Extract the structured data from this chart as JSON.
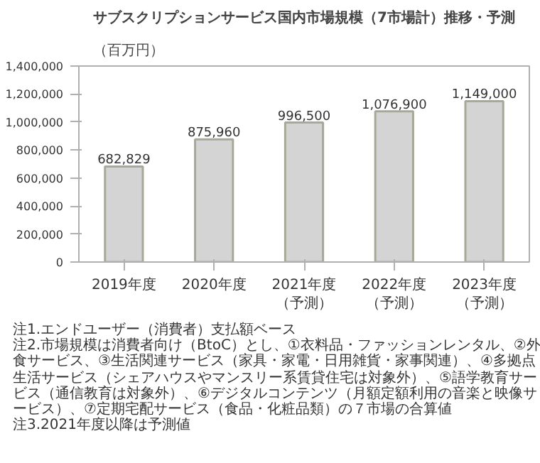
{
  "chart_data": {
    "type": "bar",
    "title": "サブスクリプションサービス国内市場規模（7市場計）推移・予測",
    "ylabel": "（百万円）",
    "categories": [
      "2019年度",
      "2020年度",
      "2021年度（予測）",
      "2022年度（予測）",
      "2023年度（予測）"
    ],
    "values": [
      682829,
      875960,
      996500,
      1076900,
      1149000
    ],
    "color": "#d4d4d4",
    "value_labels": [
      "682,829",
      "875,960",
      "996,500",
      "1,076,900",
      "1,149,000"
    ],
    "grid": false,
    "ylim": [
      0,
      1400000
    ],
    "yticks": [
      0,
      {
        "value": 200000,
        "label": "200,000"
      },
      {
        "value": 400000,
        "label": "400,000"
      },
      {
        "value": 600000,
        "label": "600,000"
      },
      {
        "value": 800000,
        "label": "800,000"
      },
      {
        "value": 1000000,
        "label": "1,000,000"
      },
      {
        "value": 1200000,
        "label": "1,200,000"
      },
      {
        "value": 1400000,
        "label": "1,400,000"
      }
    ],
    "annotations": [
      "注1.エンドユーザー（消費者）支払額ベース",
      "注2.市場規模は消費者向け（BtoC）とし、①衣料品・ファッションレンタル、②外食サービス、③生活関連サービス（家具・家電・日用雑貨・家事関連）、④多拠点生活サービス（シェアハウスやマンスリー系賃貸住宅は対象外）、⑤語学教育サービス（通信教育は対象外）、⑥デジタルコンテンツ（月額定額利用の音楽と映像サービス）、⑦定期宅配サービス（食品・化粧品類）の７市場の合算値",
      "注3.2021年度以降は予測値"
    ]
  }
}
